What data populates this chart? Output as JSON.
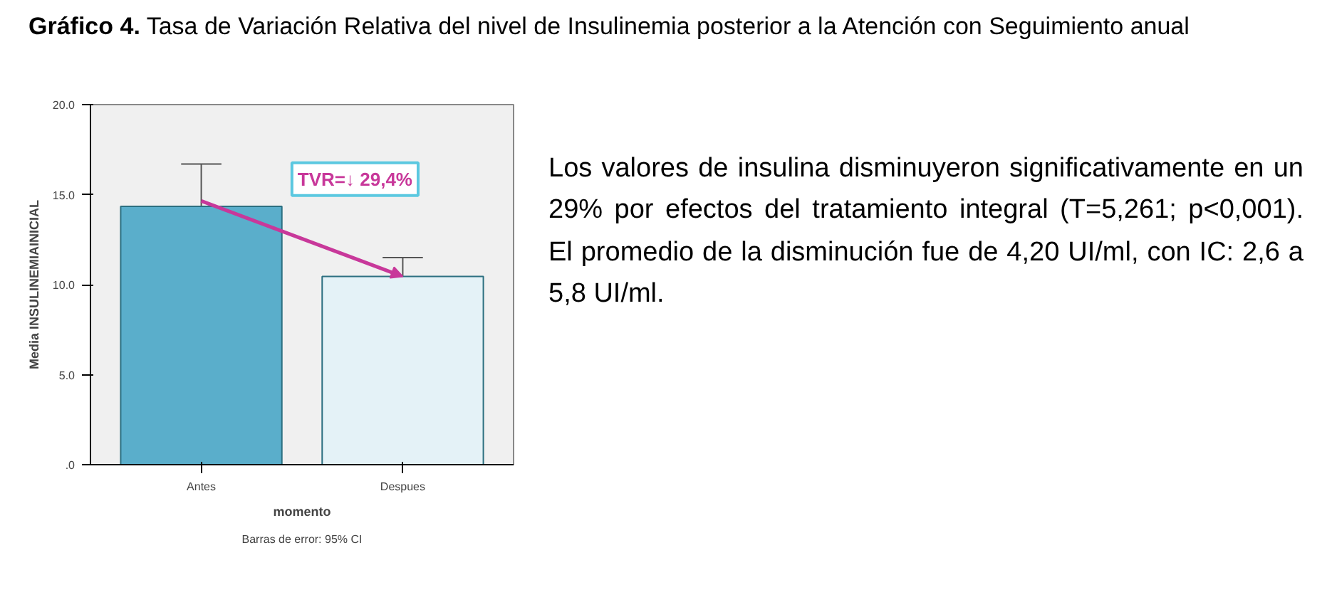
{
  "chart_data": {
    "type": "bar",
    "title": "Gráfico 4. Tasa de Variación Relativa del nivel de Insulinemia posterior a la Atención con Seguimiento anual",
    "categories": [
      "Antes",
      "Despues"
    ],
    "values": [
      14.35,
      10.45
    ],
    "colors": [
      "#5aaecb",
      "#e4f2f7"
    ],
    "errors": [
      2.35,
      1.05
    ],
    "ylabel": "Media INSULINEMIAINICIAL",
    "xlabel": "momento",
    "ylim": [
      0,
      20
    ],
    "yticks": [
      {
        "value": 0,
        "label": ".0"
      },
      {
        "value": 5,
        "label": "5.0"
      },
      {
        "value": 10,
        "label": "10.0"
      },
      {
        "value": 15,
        "label": "15.0"
      },
      {
        "value": 20,
        "label": "20.0"
      }
    ],
    "grid": false,
    "annotations": [
      "TVR=↓ 29,4%",
      "Barras de error: 95% CI",
      "Los valores de insulina disminuyeron significativamente en un 29% por efectos del tratamiento integral (T=5,261; p<0,001). El promedio de la disminución fue de 4,20 UI/ml, con IC: 2,6 a 5,8 UI/ml."
    ]
  }
}
